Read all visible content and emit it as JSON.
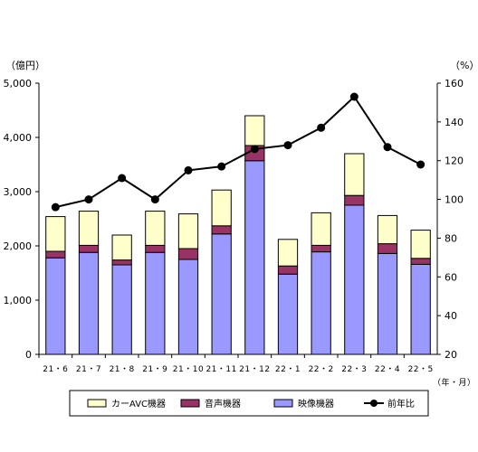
{
  "chart_data": {
    "type": "bar",
    "stacked": true,
    "left_unit": "（億円）",
    "right_unit": "（%）",
    "x_unit": "（年・月）",
    "categories": [
      "21・6",
      "21・7",
      "21・8",
      "21・9",
      "21・10",
      "21・11",
      "21・12",
      "22・1",
      "22・2",
      "22・3",
      "22・4",
      "22・5"
    ],
    "y_left": {
      "min": 0,
      "max": 5000,
      "ticks": [
        "0",
        "1,000",
        "2,000",
        "3,000",
        "4,000",
        "5,000"
      ]
    },
    "y_right": {
      "min": 20,
      "max": 160,
      "ticks": [
        "20",
        "40",
        "60",
        "80",
        "100",
        "120",
        "140",
        "160"
      ]
    },
    "series": [
      {
        "name": "映像機器",
        "color": "#9999ff",
        "axis": "left",
        "values": [
          1780,
          1880,
          1650,
          1880,
          1750,
          2220,
          3570,
          1480,
          1890,
          2750,
          1860,
          1660
        ]
      },
      {
        "name": "音声機器",
        "color": "#993366",
        "axis": "left",
        "values": [
          120,
          130,
          90,
          130,
          200,
          150,
          280,
          150,
          120,
          180,
          180,
          110
        ]
      },
      {
        "name": "カーAVC機器",
        "color": "#ffffcc",
        "axis": "left",
        "values": [
          640,
          630,
          460,
          630,
          640,
          660,
          550,
          490,
          600,
          770,
          520,
          520
        ]
      },
      {
        "name": "前年比",
        "type": "line",
        "color": "#000000",
        "axis": "right",
        "values": [
          96,
          100,
          111,
          100,
          115,
          117,
          126,
          128,
          137,
          153,
          127,
          118
        ]
      }
    ],
    "legend": [
      "カーAVC機器",
      "音声機器",
      "映像機器",
      "前年比"
    ],
    "legend_position": "bottom",
    "grid": false
  }
}
